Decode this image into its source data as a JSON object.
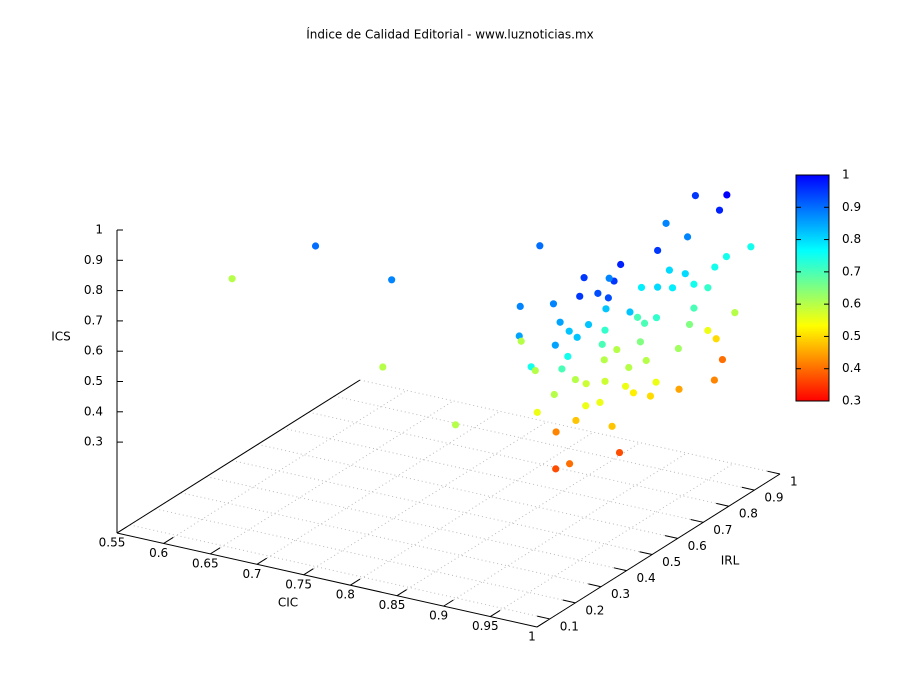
{
  "chart_data": {
    "type": "scatter3d",
    "title": "Índice de Calidad Editorial - www.luznoticias.mx",
    "x_label": "CIC",
    "y_label": "IRL",
    "z_label": "ICS",
    "xlim": [
      0.55,
      1
    ],
    "xticks": [
      0.55,
      0.6,
      0.65,
      0.7,
      0.75,
      0.8,
      0.85,
      0.9,
      0.95,
      1
    ],
    "ylim": [
      0.05,
      1
    ],
    "yticks": [
      0.1,
      0.2,
      0.3,
      0.4,
      0.5,
      0.6,
      0.7,
      0.8,
      0.9,
      1
    ],
    "zlim": [
      0,
      1
    ],
    "zticks": [
      0.3,
      0.4,
      0.5,
      0.6,
      0.7,
      0.8,
      0.9,
      1
    ],
    "cblim": [
      0.3,
      1
    ],
    "cbticks": [
      0.3,
      0.4,
      0.5,
      0.6,
      0.7,
      0.8,
      0.9,
      1
    ],
    "palette": [
      "#ff0000",
      "#ff8000",
      "#ffff00",
      "#80ff80",
      "#00ffff",
      "#0080ff",
      "#0000ff"
    ],
    "grid": true,
    "x": [
      0.55,
      0.689,
      0.784,
      0.78,
      0.91,
      0.866,
      0.988,
      0.957,
      0.973,
      0.987,
      0.93,
      0.954,
      0.99,
      0.94,
      0.985,
      0.99,
      0.963,
      0.99,
      0.99,
      0.977,
      0.945,
      0.93,
      0.99,
      0.964,
      0.984,
      0.98,
      0.96,
      0.988,
      0.98,
      0.997,
      0.983,
      0.919,
      0.944,
      0.942,
      0.959,
      0.966,
      0.98,
      0.984,
      0.97,
      0.954,
      0.905,
      0.857,
      0.962,
      0.95,
      0.948,
      0.954,
      0.977,
      0.97,
      0.966,
      0.963,
      0.946,
      0.955,
      0.973,
      0.967,
      0.943,
      0.975,
      0.977,
      0.98,
      0.996,
      0.98,
      0.957,
      0.98,
      0.97,
      0.971,
      0.998,
      0.988,
      0.99,
      0.972,
      0.97,
      0.983,
      0.974,
      0.97,
      0.979,
      0.978,
      0.961,
      0.978,
      0.953,
      0.973,
      0.99,
      0.954
    ],
    "y": [
      0.5,
      0.319,
      0.27,
      0.25,
      0.06,
      0.55,
      0.836,
      0.28,
      0.276,
      0.42,
      0.38,
      0.37,
      0.38,
      0.27,
      0.66,
      0.78,
      0.91,
      0.53,
      0.86,
      0.97,
      0.87,
      0.81,
      0.8,
      0.77,
      0.58,
      0.45,
      0.38,
      0.395,
      0.29,
      0.34,
      0.35,
      0.28,
      0.185,
      0.326,
      0.29,
      0.3,
      0.28,
      0.18,
      0.28,
      0.195,
      0.39,
      0.51,
      0.286,
      0.3,
      0.39,
      0.41,
      0.38,
      0.35,
      0.44,
      0.44,
      0.51,
      0.48,
      0.35,
      0.44,
      0.57,
      0.5,
      0.48,
      0.5,
      0.53,
      0.55,
      0.6,
      0.59,
      0.58,
      0.56,
      0.61,
      0.69,
      0.7,
      0.82,
      0.86,
      0.78,
      0.84,
      0.9,
      0.74,
      0.71,
      0.71,
      0.66,
      0.63,
      0.62,
      0.45,
      0.5
    ],
    "z": [
      0.6,
      0.9,
      0.88,
      0.6,
      0.6,
      0.9,
      1,
      0.37,
      0.4,
      0.37,
      0.42,
      0.48,
      0.48,
      0.55,
      0.45,
      0.42,
      0.4,
      0.5,
      0.6,
      0.75,
      0.95,
      0.88,
      0.97,
      0.88,
      0.95,
      0.97,
      0.95,
      0.95,
      0.95,
      0.93,
      0.93,
      0.88,
      0.85,
      0.88,
      0.85,
      0.82,
      0.82,
      0.85,
      0.75,
      0.75,
      0.6,
      0.6,
      0.7,
      0.6,
      0.6,
      0.58,
      0.55,
      0.55,
      0.58,
      0.7,
      0.6,
      0.72,
      0.82,
      0.82,
      0.6,
      0.6,
      0.55,
      0.52,
      0.55,
      0.6,
      0.7,
      0.72,
      0.7,
      0.65,
      0.62,
      0.65,
      0.7,
      0.55,
      0.5,
      0.72,
      0.75,
      0.75,
      0.75,
      0.8,
      0.8,
      0.78,
      0.78,
      0.8,
      0.82,
      0.88
    ]
  }
}
